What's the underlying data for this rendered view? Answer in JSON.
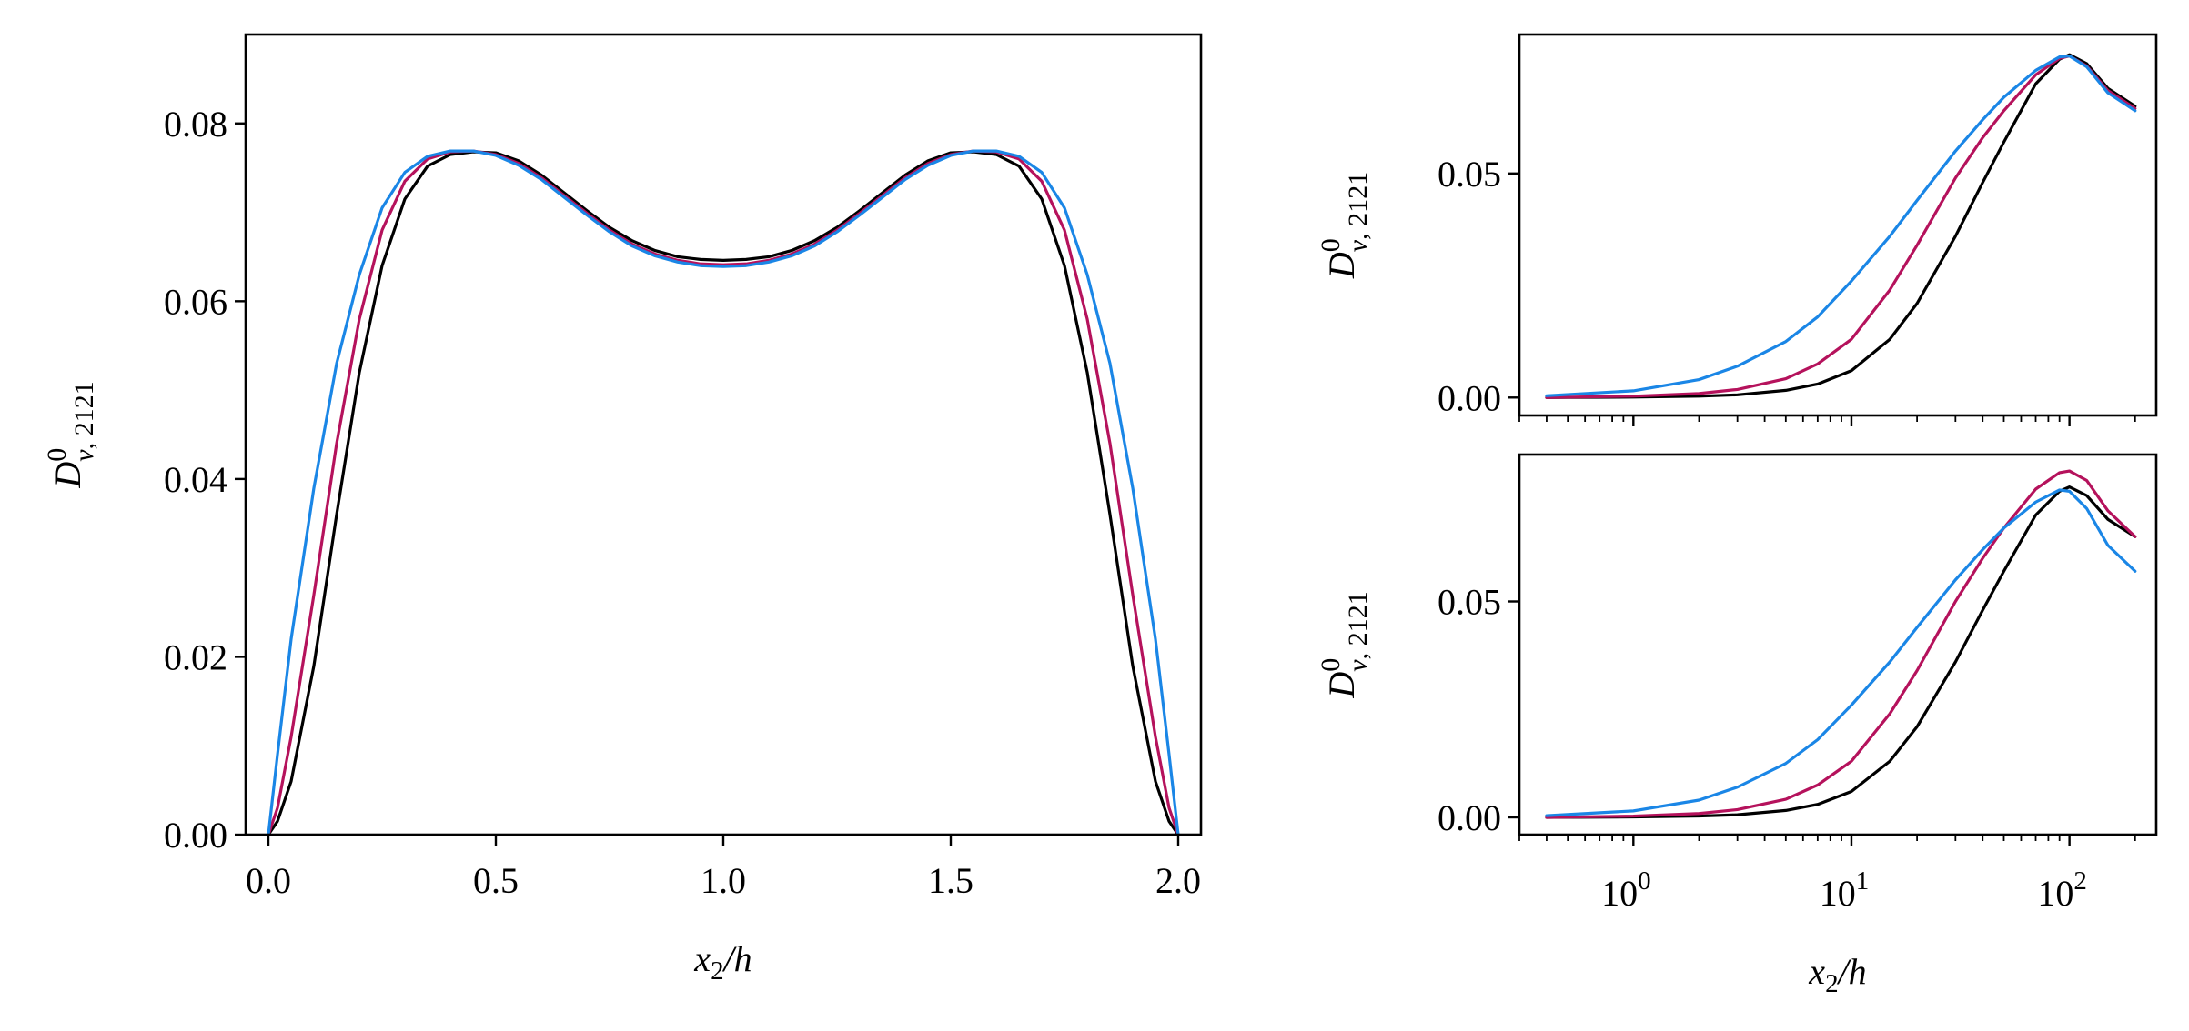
{
  "chart_data": [
    {
      "id": "left",
      "type": "line",
      "title": "",
      "xlabel": "x2/h",
      "ylabel": "D0_v,2121",
      "xscale": "linear",
      "xlim": [
        -0.05,
        2.05
      ],
      "ylim": [
        0.0,
        0.09
      ],
      "xticks": [
        0.0,
        0.5,
        1.0,
        1.5,
        2.0
      ],
      "xtick_labels": [
        "0.0",
        "0.5",
        "1.0",
        "1.5",
        "2.0"
      ],
      "yticks": [
        0.0,
        0.02,
        0.04,
        0.06,
        0.08
      ],
      "ytick_labels": [
        "0.00",
        "0.02",
        "0.04",
        "0.06",
        "0.08"
      ],
      "grid": false,
      "series": [
        {
          "color": "#000000",
          "x": [
            0.0,
            0.02,
            0.05,
            0.1,
            0.15,
            0.2,
            0.25,
            0.3,
            0.35,
            0.4,
            0.45,
            0.5,
            0.55,
            0.6,
            0.65,
            0.7,
            0.75,
            0.8,
            0.85,
            0.9,
            0.95,
            1.0,
            1.05,
            1.1,
            1.15,
            1.2,
            1.25,
            1.3,
            1.35,
            1.4,
            1.45,
            1.5,
            1.55,
            1.6,
            1.65,
            1.7,
            1.75,
            1.8,
            1.85,
            1.9,
            1.95,
            1.98,
            2.0
          ],
          "y": [
            0.0,
            0.0015,
            0.006,
            0.019,
            0.036,
            0.052,
            0.064,
            0.0715,
            0.0752,
            0.0765,
            0.0768,
            0.0767,
            0.0758,
            0.0742,
            0.0722,
            0.0702,
            0.0683,
            0.0668,
            0.0657,
            0.065,
            0.0647,
            0.0646,
            0.0647,
            0.065,
            0.0657,
            0.0668,
            0.0683,
            0.0702,
            0.0722,
            0.0742,
            0.0758,
            0.0767,
            0.0768,
            0.0765,
            0.0752,
            0.0715,
            0.064,
            0.052,
            0.036,
            0.019,
            0.006,
            0.0015,
            0.0
          ]
        },
        {
          "color": "#b5125c",
          "x": [
            0.0,
            0.02,
            0.05,
            0.1,
            0.15,
            0.2,
            0.25,
            0.3,
            0.35,
            0.4,
            0.45,
            0.5,
            0.55,
            0.6,
            0.65,
            0.7,
            0.75,
            0.8,
            0.85,
            0.9,
            0.95,
            1.0,
            1.05,
            1.1,
            1.15,
            1.2,
            1.25,
            1.3,
            1.35,
            1.4,
            1.45,
            1.5,
            1.55,
            1.6,
            1.65,
            1.7,
            1.75,
            1.8,
            1.85,
            1.9,
            1.95,
            1.98,
            2.0
          ],
          "y": [
            0.0,
            0.003,
            0.011,
            0.027,
            0.044,
            0.058,
            0.068,
            0.0735,
            0.076,
            0.0768,
            0.0769,
            0.0765,
            0.0755,
            0.0739,
            0.0719,
            0.0699,
            0.068,
            0.0664,
            0.0653,
            0.0646,
            0.0642,
            0.0641,
            0.0642,
            0.0646,
            0.0653,
            0.0664,
            0.068,
            0.0699,
            0.0719,
            0.0739,
            0.0755,
            0.0765,
            0.0769,
            0.0768,
            0.076,
            0.0735,
            0.068,
            0.058,
            0.044,
            0.027,
            0.011,
            0.003,
            0.0
          ]
        },
        {
          "color": "#1a86e6",
          "x": [
            0.0,
            0.02,
            0.05,
            0.1,
            0.15,
            0.2,
            0.25,
            0.3,
            0.35,
            0.4,
            0.45,
            0.5,
            0.55,
            0.6,
            0.65,
            0.7,
            0.75,
            0.8,
            0.85,
            0.9,
            0.95,
            1.0,
            1.05,
            1.1,
            1.15,
            1.2,
            1.25,
            1.3,
            1.35,
            1.4,
            1.45,
            1.5,
            1.55,
            1.6,
            1.65,
            1.7,
            1.75,
            1.8,
            1.85,
            1.9,
            1.95,
            1.98,
            2.0
          ],
          "y": [
            0.0,
            0.009,
            0.022,
            0.039,
            0.053,
            0.063,
            0.0705,
            0.0745,
            0.0763,
            0.0769,
            0.0769,
            0.0764,
            0.0753,
            0.0737,
            0.0717,
            0.0697,
            0.0678,
            0.0662,
            0.0651,
            0.0644,
            0.064,
            0.0639,
            0.064,
            0.0644,
            0.0651,
            0.0662,
            0.0678,
            0.0697,
            0.0717,
            0.0737,
            0.0753,
            0.0764,
            0.0769,
            0.0769,
            0.0763,
            0.0745,
            0.0705,
            0.063,
            0.053,
            0.039,
            0.022,
            0.009,
            0.0
          ]
        }
      ]
    },
    {
      "id": "top-right",
      "type": "line",
      "title": "",
      "xlabel": "",
      "ylabel": "D0_v,2121",
      "xscale": "log",
      "xlim": [
        0.3,
        250
      ],
      "ylim": [
        -0.004,
        0.081
      ],
      "xticks": [
        1,
        10,
        100
      ],
      "xtick_labels": [
        "",
        "",
        ""
      ],
      "yticks": [
        0.0,
        0.05
      ],
      "ytick_labels": [
        "0.00",
        "0.05"
      ],
      "grid": false,
      "series": [
        {
          "color": "#000000",
          "x": [
            0.4,
            1,
            2,
            3,
            5,
            7,
            10,
            15,
            20,
            30,
            40,
            50,
            70,
            90,
            100,
            120,
            150,
            200
          ],
          "y": [
            0.0,
            0.0001,
            0.0003,
            0.0006,
            0.0016,
            0.003,
            0.006,
            0.013,
            0.021,
            0.036,
            0.048,
            0.057,
            0.07,
            0.0755,
            0.0765,
            0.0745,
            0.069,
            0.065
          ]
        },
        {
          "color": "#b5125c",
          "x": [
            0.4,
            1,
            2,
            3,
            5,
            7,
            10,
            15,
            20,
            30,
            40,
            50,
            70,
            90,
            100,
            120,
            150,
            200
          ],
          "y": [
            0.0,
            0.0003,
            0.0009,
            0.0018,
            0.0042,
            0.0075,
            0.013,
            0.024,
            0.034,
            0.049,
            0.058,
            0.064,
            0.072,
            0.0757,
            0.0762,
            0.074,
            0.0685,
            0.0645
          ]
        },
        {
          "color": "#1a86e6",
          "x": [
            0.4,
            1,
            2,
            3,
            5,
            7,
            10,
            15,
            20,
            30,
            40,
            50,
            70,
            90,
            100,
            120,
            150,
            200
          ],
          "y": [
            0.0004,
            0.0015,
            0.004,
            0.007,
            0.0125,
            0.018,
            0.026,
            0.036,
            0.044,
            0.055,
            0.062,
            0.067,
            0.073,
            0.076,
            0.0762,
            0.0738,
            0.068,
            0.064
          ]
        }
      ]
    },
    {
      "id": "bottom-right",
      "type": "line",
      "title": "",
      "xlabel": "x2/h",
      "ylabel": "D0_v,2121",
      "xscale": "log",
      "xlim": [
        0.3,
        250
      ],
      "ylim": [
        -0.004,
        0.084
      ],
      "xticks": [
        1,
        10,
        100
      ],
      "xtick_labels": [
        "10^0",
        "10^1",
        "10^2"
      ],
      "yticks": [
        0.0,
        0.05
      ],
      "ytick_labels": [
        "0.00",
        "0.05"
      ],
      "grid": false,
      "series": [
        {
          "color": "#000000",
          "x": [
            0.4,
            1,
            2,
            3,
            5,
            7,
            10,
            15,
            20,
            30,
            40,
            50,
            70,
            90,
            100,
            120,
            150,
            200
          ],
          "y": [
            0.0,
            0.0001,
            0.0003,
            0.0006,
            0.0016,
            0.003,
            0.006,
            0.013,
            0.021,
            0.036,
            0.048,
            0.057,
            0.07,
            0.0755,
            0.0765,
            0.0745,
            0.069,
            0.065
          ]
        },
        {
          "color": "#b5125c",
          "x": [
            0.4,
            1,
            2,
            3,
            5,
            7,
            10,
            15,
            20,
            30,
            40,
            50,
            70,
            90,
            100,
            120,
            150,
            200
          ],
          "y": [
            0.0,
            0.0003,
            0.0009,
            0.0018,
            0.0042,
            0.0075,
            0.013,
            0.024,
            0.034,
            0.05,
            0.06,
            0.067,
            0.076,
            0.0798,
            0.0802,
            0.078,
            0.071,
            0.065
          ]
        },
        {
          "color": "#1a86e6",
          "x": [
            0.4,
            1,
            2,
            3,
            5,
            7,
            10,
            15,
            20,
            30,
            40,
            50,
            70,
            90,
            100,
            120,
            150,
            200
          ],
          "y": [
            0.0004,
            0.0015,
            0.004,
            0.007,
            0.0125,
            0.018,
            0.026,
            0.036,
            0.044,
            0.055,
            0.062,
            0.067,
            0.073,
            0.0758,
            0.0755,
            0.0715,
            0.063,
            0.057
          ]
        }
      ]
    }
  ]
}
